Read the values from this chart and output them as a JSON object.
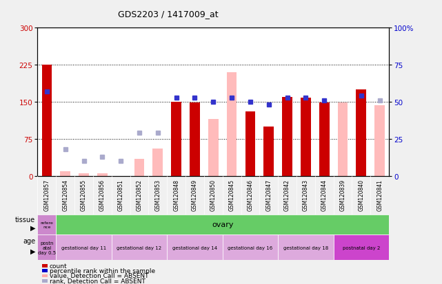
{
  "title": "GDS2203 / 1417009_at",
  "samples": [
    "GSM120857",
    "GSM120854",
    "GSM120855",
    "GSM120856",
    "GSM120851",
    "GSM120852",
    "GSM120853",
    "GSM120848",
    "GSM120849",
    "GSM120850",
    "GSM120845",
    "GSM120846",
    "GSM120847",
    "GSM120842",
    "GSM120843",
    "GSM120844",
    "GSM120839",
    "GSM120840",
    "GSM120841"
  ],
  "count_values": [
    225,
    0,
    0,
    0,
    0,
    0,
    0,
    150,
    148,
    0,
    0,
    130,
    100,
    160,
    158,
    148,
    0,
    175,
    0
  ],
  "count_absent": [
    0,
    10,
    5,
    5,
    0,
    35,
    55,
    0,
    0,
    115,
    210,
    0,
    0,
    0,
    0,
    0,
    148,
    0,
    143
  ],
  "rank_present_pct": [
    57,
    0,
    0,
    0,
    0,
    0,
    0,
    53,
    53,
    50,
    53,
    50,
    48,
    53,
    53,
    51,
    0,
    54,
    0
  ],
  "rank_absent_pct": [
    0,
    18,
    10,
    13,
    10,
    29,
    29,
    0,
    0,
    0,
    0,
    0,
    0,
    0,
    0,
    0,
    0,
    0,
    51
  ],
  "ylim_left": [
    0,
    300
  ],
  "ylim_right": [
    0,
    100
  ],
  "yticks_left": [
    0,
    75,
    150,
    225,
    300
  ],
  "yticks_right": [
    0,
    25,
    50,
    75,
    100
  ],
  "ylabel_left_color": "#cc0000",
  "ylabel_right_color": "#0000cc",
  "tissue_row": {
    "ref_label": "refere\nnce",
    "ref_color": "#cc88cc",
    "main_label": "ovary",
    "main_color": "#66cc66"
  },
  "age_row": {
    "groups": [
      {
        "label": "postn\natal\nday 0.5",
        "color": "#cc88cc",
        "span": 1
      },
      {
        "label": "gestational day 11",
        "color": "#ddaadd",
        "span": 3
      },
      {
        "label": "gestational day 12",
        "color": "#ddaadd",
        "span": 3
      },
      {
        "label": "gestational day 14",
        "color": "#ddaadd",
        "span": 3
      },
      {
        "label": "gestational day 16",
        "color": "#ddaadd",
        "span": 3
      },
      {
        "label": "gestational day 18",
        "color": "#ddaadd",
        "span": 3
      },
      {
        "label": "postnatal day 2",
        "color": "#cc44cc",
        "span": 3
      }
    ]
  },
  "legend": [
    {
      "color": "#cc0000",
      "label": "count"
    },
    {
      "color": "#0000cc",
      "label": "percentile rank within the sample"
    },
    {
      "color": "#ffaaaa",
      "label": "value, Detection Call = ABSENT"
    },
    {
      "color": "#aaaacc",
      "label": "rank, Detection Call = ABSENT"
    }
  ],
  "bar_color_present": "#cc0000",
  "bar_color_absent": "#ffbbbb",
  "rank_color_present": "#3333cc",
  "rank_color_absent": "#aaaacc",
  "plot_bg": "#ffffff",
  "fig_bg": "#f0f0f0",
  "xtick_bg": "#d0d0d0"
}
